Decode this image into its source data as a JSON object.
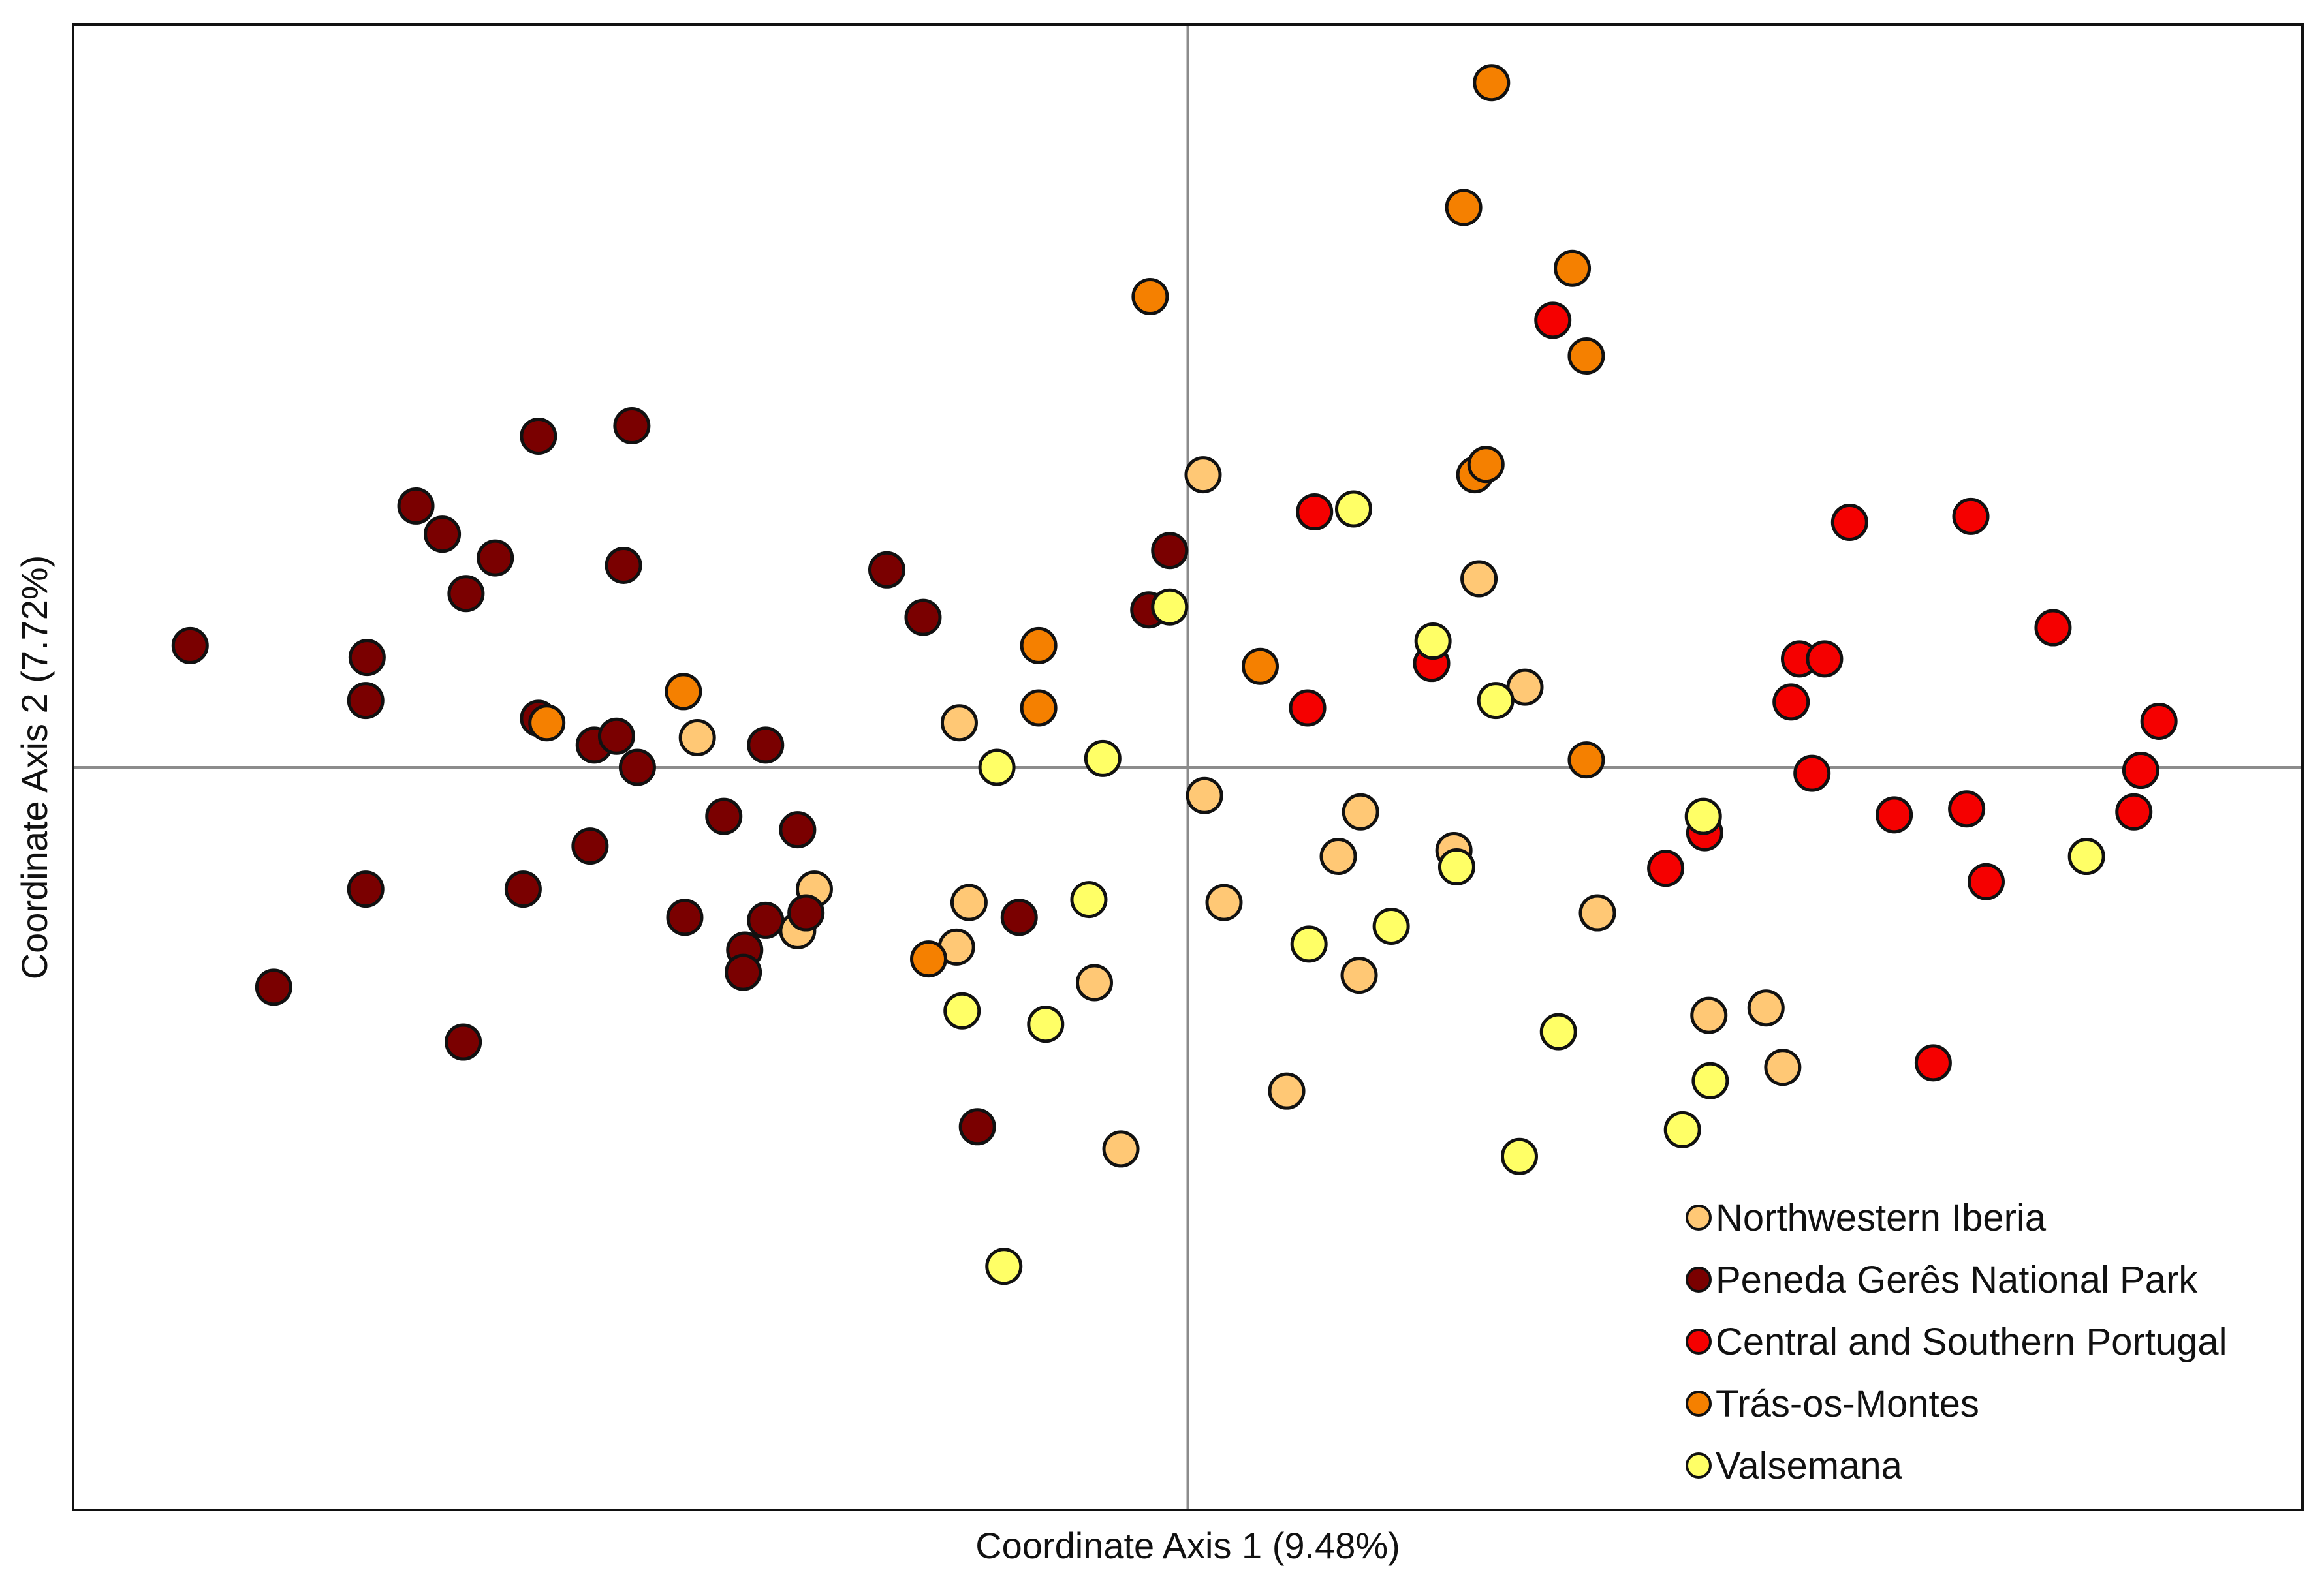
{
  "chart_data": {
    "type": "scatter",
    "title": "",
    "xlabel": "Coordinate Axis 1 (9.48%)",
    "ylabel": "Coordinate Axis 2 (7.72%)",
    "xlim": [
      -8.0,
      8.0
    ],
    "ylim": [
      -5.0,
      5.0
    ],
    "grid": false,
    "zero_lines": true,
    "legend_position": "bottom-right",
    "series": [
      {
        "name": "Northwestern Iberia",
        "color": "#FFC875",
        "points": [
          [
            0.11,
            1.97
          ],
          [
            -3.52,
            0.2
          ],
          [
            -2.68,
            -0.82
          ],
          [
            -2.8,
            -1.1
          ],
          [
            -1.64,
            0.3
          ],
          [
            -1.57,
            -0.91
          ],
          [
            -1.66,
            -1.21
          ],
          [
            -0.67,
            -1.45
          ],
          [
            -0.48,
            -2.57
          ],
          [
            0.12,
            -0.19
          ],
          [
            0.26,
            -0.91
          ],
          [
            0.71,
            -2.18
          ],
          [
            1.08,
            -0.6
          ],
          [
            1.24,
            -0.3
          ],
          [
            1.23,
            -1.4
          ],
          [
            2.09,
            1.27
          ],
          [
            1.91,
            -0.56
          ],
          [
            2.42,
            0.54
          ],
          [
            2.94,
            -0.98
          ],
          [
            3.74,
            -1.67
          ],
          [
            4.15,
            -1.62
          ],
          [
            4.27,
            -2.02
          ]
        ]
      },
      {
        "name": "Peneda Gerês National Park",
        "color": "#7A0000",
        "points": [
          [
            -7.16,
            0.82
          ],
          [
            -5.89,
            0.74
          ],
          [
            -5.9,
            0.45
          ],
          [
            -5.9,
            -0.82
          ],
          [
            -6.56,
            -1.48
          ],
          [
            -5.54,
            1.76
          ],
          [
            -5.35,
            1.57
          ],
          [
            -5.18,
            1.17
          ],
          [
            -4.97,
            1.41
          ],
          [
            -4.66,
            2.23
          ],
          [
            -3.99,
            2.3
          ],
          [
            -4.05,
            1.36
          ],
          [
            -4.66,
            0.33
          ],
          [
            -4.26,
            0.15
          ],
          [
            -4.1,
            0.21
          ],
          [
            -3.95,
            0.0
          ],
          [
            -4.29,
            -0.53
          ],
          [
            -4.77,
            -0.82
          ],
          [
            -5.2,
            -1.85
          ],
          [
            -3.61,
            -1.01
          ],
          [
            -3.03,
            0.15
          ],
          [
            -3.33,
            -0.33
          ],
          [
            -2.8,
            -0.42
          ],
          [
            -3.03,
            -1.03
          ],
          [
            -2.74,
            -0.98
          ],
          [
            -3.18,
            -1.23
          ],
          [
            -3.19,
            -1.38
          ],
          [
            -2.16,
            1.33
          ],
          [
            -1.9,
            1.01
          ],
          [
            -1.21,
            -1.01
          ],
          [
            -1.51,
            -2.42
          ],
          [
            -0.13,
            1.46
          ],
          [
            -0.28,
            1.06
          ]
        ]
      },
      {
        "name": "Central and Southern Portugal",
        "color": "#F50000",
        "points": [
          [
            2.62,
            3.01
          ],
          [
            0.91,
            1.72
          ],
          [
            0.86,
            0.4
          ],
          [
            1.75,
            0.7
          ],
          [
            4.75,
            1.65
          ],
          [
            5.62,
            1.69
          ],
          [
            4.39,
            0.73
          ],
          [
            4.57,
            0.73
          ],
          [
            4.33,
            0.44
          ],
          [
            4.48,
            -0.04
          ],
          [
            6.21,
            0.94
          ],
          [
            6.97,
            0.31
          ],
          [
            6.84,
            -0.02
          ],
          [
            6.79,
            -0.3
          ],
          [
            5.07,
            -0.32
          ],
          [
            5.59,
            -0.28
          ],
          [
            5.73,
            -0.77
          ],
          [
            3.71,
            -0.44
          ],
          [
            3.43,
            -0.68
          ],
          [
            5.35,
            -1.99
          ]
        ]
      },
      {
        "name": "Trás-os-Montes",
        "color": "#F58000",
        "points": [
          [
            2.18,
            4.61
          ],
          [
            1.98,
            3.77
          ],
          [
            2.76,
            3.36
          ],
          [
            2.86,
            2.77
          ],
          [
            -0.27,
            3.17
          ],
          [
            2.06,
            1.97
          ],
          [
            2.14,
            2.04
          ],
          [
            0.52,
            0.68
          ],
          [
            2.86,
            0.05
          ],
          [
            -1.07,
            0.82
          ],
          [
            -1.07,
            0.4
          ],
          [
            -3.62,
            0.51
          ],
          [
            -4.6,
            0.3
          ],
          [
            -1.86,
            -1.29
          ]
        ]
      },
      {
        "name": "Valsemana",
        "color": "#FFFF66",
        "points": [
          [
            1.19,
            1.74
          ],
          [
            1.76,
            0.85
          ],
          [
            2.21,
            0.45
          ],
          [
            -0.13,
            1.08
          ],
          [
            -1.37,
            0.0
          ],
          [
            -0.61,
            0.06
          ],
          [
            -0.71,
            -0.89
          ],
          [
            -1.62,
            -1.64
          ],
          [
            -1.02,
            -1.73
          ],
          [
            0.87,
            -1.19
          ],
          [
            1.46,
            -1.07
          ],
          [
            1.93,
            -0.67
          ],
          [
            2.66,
            -1.78
          ],
          [
            3.55,
            -2.44
          ],
          [
            2.38,
            -2.62
          ],
          [
            3.7,
            -0.33
          ],
          [
            3.75,
            -2.11
          ],
          [
            6.45,
            -0.6
          ],
          [
            -1.32,
            -3.36
          ]
        ]
      }
    ]
  }
}
